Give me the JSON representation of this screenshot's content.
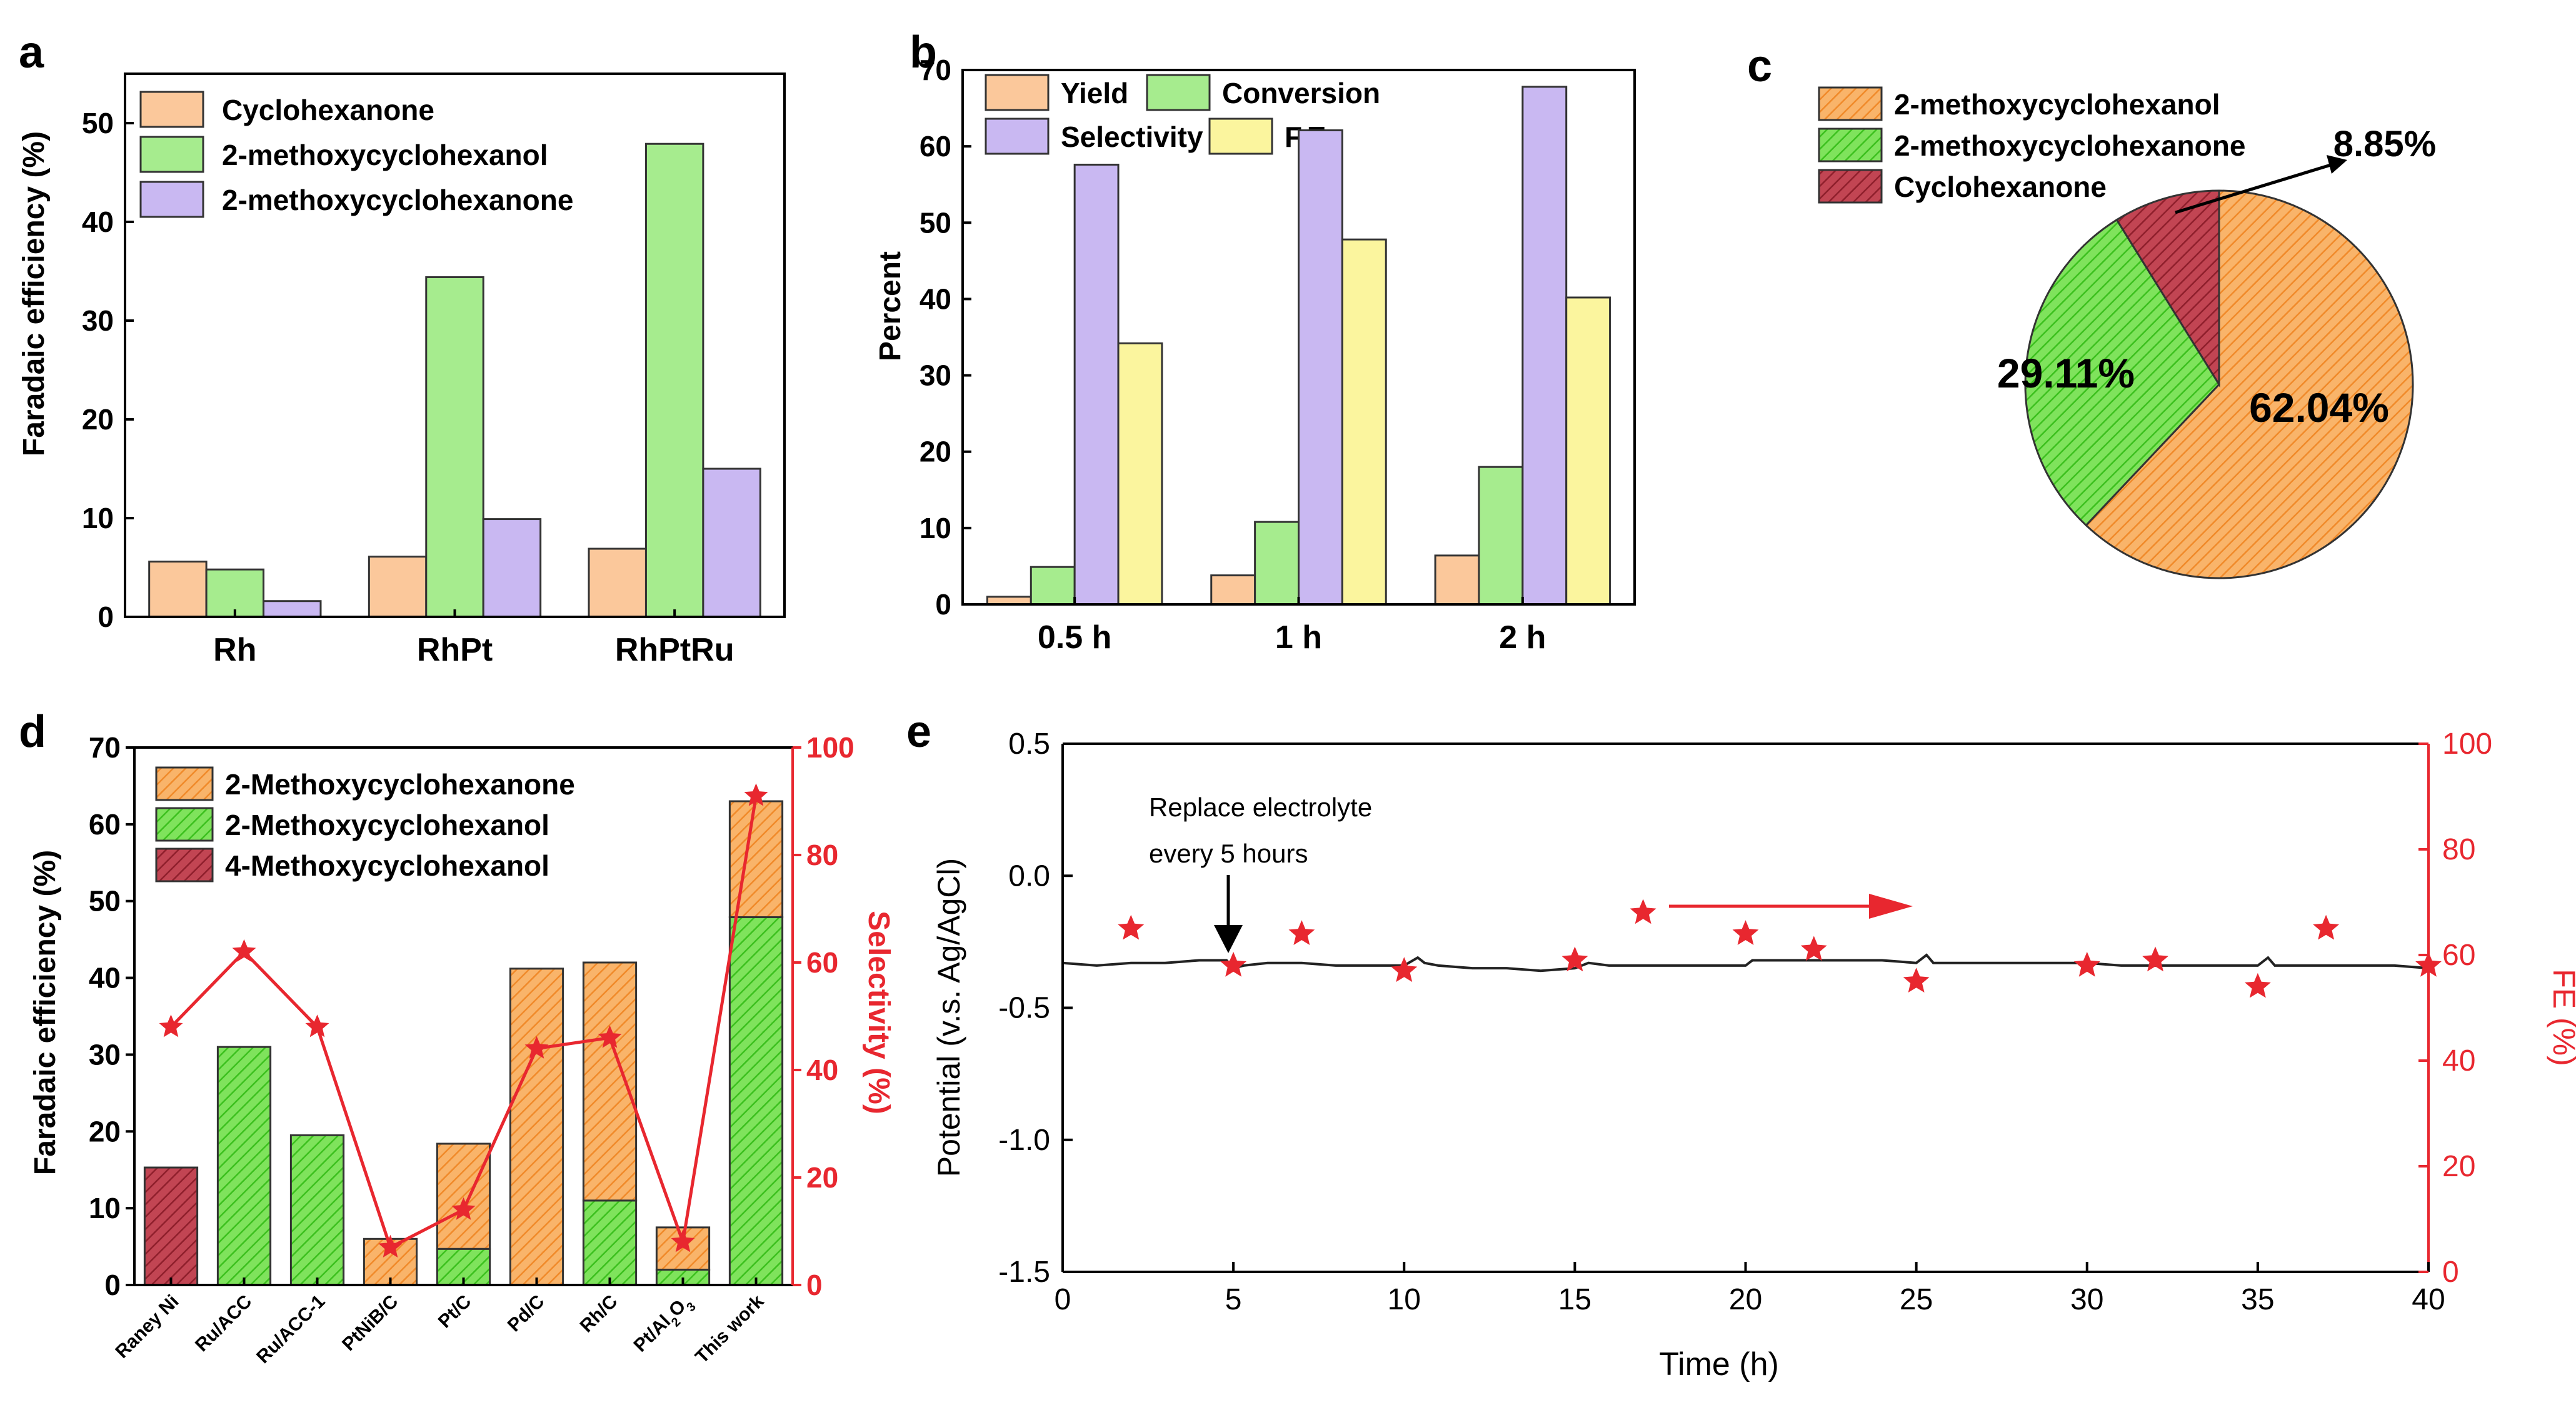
{
  "colors": {
    "orange": "#fbc89b",
    "green": "#a6ec8e",
    "purple": "#c9b8f2",
    "yellow": "#fbf59e",
    "orange_hatch": "#f7a54f",
    "green_hatch": "#55d83a",
    "red_hatch": "#b3303e",
    "red": "#e8272f",
    "trace": "#222222"
  },
  "chart_data": [
    {
      "panel": "a",
      "type": "bar",
      "ylabel": "Faradaic efficiency (%)",
      "ylim": [
        0,
        55
      ],
      "yticks": [
        "0",
        "10",
        "20",
        "30",
        "40",
        "50"
      ],
      "categories": [
        "Rh",
        "RhPt",
        "RhPtRu"
      ],
      "legend_position": "top-left",
      "series": [
        {
          "name": "Cyclohexanone",
          "values": [
            5.6,
            6.1,
            6.9
          ]
        },
        {
          "name": "2-methoxycyclohexanol",
          "values": [
            4.8,
            34.4,
            47.9
          ]
        },
        {
          "name": "2-methoxycyclohexanone",
          "values": [
            1.6,
            9.9,
            15.0
          ]
        }
      ]
    },
    {
      "panel": "b",
      "type": "bar",
      "ylabel": "Percent",
      "ylim": [
        0,
        70
      ],
      "yticks": [
        "0",
        "10",
        "20",
        "30",
        "40",
        "50",
        "60",
        "70"
      ],
      "categories": [
        "0.5 h",
        "1 h",
        "2 h"
      ],
      "legend_position": "top",
      "series": [
        {
          "name": "Yield",
          "values": [
            1.0,
            3.8,
            6.4
          ]
        },
        {
          "name": "Conversion",
          "values": [
            4.9,
            10.8,
            18.0
          ]
        },
        {
          "name": "Selectivity",
          "values": [
            57.6,
            62.1,
            67.8
          ]
        },
        {
          "name": "F.E.",
          "values": [
            34.2,
            47.8,
            40.2
          ]
        }
      ]
    },
    {
      "panel": "c",
      "type": "pie",
      "legend_position": "top-left",
      "labels": [
        "2-methoxycyclohexanol",
        "2-methoxycyclohexanone",
        "Cyclohexanone"
      ],
      "values": [
        62.04,
        29.11,
        8.85
      ],
      "data_labels": [
        "62.04%",
        "29.11%",
        "8.85%"
      ]
    },
    {
      "panel": "d",
      "type": "bar",
      "stacked": true,
      "ylabel": "Faradaic efficiency (%)",
      "ylim": [
        0,
        70
      ],
      "yticks": [
        "0",
        "10",
        "20",
        "30",
        "40",
        "50",
        "60",
        "70"
      ],
      "y2label": "Selectivity (%)",
      "y2lim": [
        0,
        100
      ],
      "y2ticks": [
        "0",
        "20",
        "40",
        "60",
        "80",
        "100"
      ],
      "categories": [
        "Raney Ni",
        "Ru/ACC",
        "Ru/ACC-1",
        "PtNiB/C",
        "Pt/C",
        "Pd/C",
        "Rh/C",
        "Pt/Al2O3",
        "This work"
      ],
      "legend_position": "top-left",
      "series": [
        {
          "name": "4-Methoxycyclohexanol",
          "values": [
            15.3,
            0,
            0,
            0,
            0,
            0,
            0,
            0,
            0
          ]
        },
        {
          "name": "2-Methoxycyclohexanol",
          "values": [
            0,
            31.0,
            19.5,
            0,
            4.7,
            0,
            11.0,
            2.0,
            47.9
          ]
        },
        {
          "name": "2-Methoxycyclohexanone",
          "values": [
            0,
            0,
            0,
            6.0,
            13.7,
            41.2,
            31.0,
            5.5,
            15.1
          ]
        }
      ],
      "selectivity": {
        "values": [
          48,
          62,
          48,
          7,
          14,
          44,
          46,
          8,
          91
        ]
      }
    },
    {
      "panel": "e",
      "type": "line",
      "xlabel": "Time (h)",
      "xlim": [
        0,
        40
      ],
      "xticks": [
        "0",
        "5",
        "10",
        "15",
        "20",
        "25",
        "30",
        "35",
        "40"
      ],
      "ylabel": "Potential (v.s. Ag/AgCl)",
      "ylim": [
        -1.5,
        0.5
      ],
      "yticks": [
        "-1.5",
        "-1.0",
        "-0.5",
        "0.0",
        "0.5"
      ],
      "y2label": "FE (%)",
      "y2lim": [
        0,
        100
      ],
      "y2ticks": [
        "0",
        "20",
        "40",
        "60",
        "80",
        "100"
      ],
      "annotation_line1": "Replace electrolyte",
      "annotation_line2": "every 5 hours",
      "annotation_x": 5,
      "potential": {
        "x": [
          0,
          1,
          2,
          3,
          4,
          4.8,
          5,
          5.3,
          6,
          7,
          8,
          9,
          10,
          10.4,
          10.6,
          11,
          12,
          13,
          14,
          15,
          15.4,
          16,
          17,
          18,
          19,
          20,
          20.2,
          21,
          22,
          23,
          24,
          25,
          25.3,
          25.5,
          26,
          27,
          28,
          29,
          30,
          31,
          32,
          33,
          34,
          35,
          35.3,
          35.5,
          36,
          37,
          38,
          39,
          40
        ],
        "y": [
          -0.33,
          -0.34,
          -0.33,
          -0.33,
          -0.32,
          -0.32,
          -0.35,
          -0.34,
          -0.33,
          -0.33,
          -0.34,
          -0.34,
          -0.34,
          -0.31,
          -0.33,
          -0.34,
          -0.35,
          -0.35,
          -0.36,
          -0.35,
          -0.33,
          -0.34,
          -0.34,
          -0.34,
          -0.34,
          -0.34,
          -0.32,
          -0.32,
          -0.32,
          -0.32,
          -0.32,
          -0.33,
          -0.3,
          -0.33,
          -0.33,
          -0.33,
          -0.33,
          -0.33,
          -0.33,
          -0.34,
          -0.34,
          -0.34,
          -0.34,
          -0.34,
          -0.31,
          -0.34,
          -0.34,
          -0.34,
          -0.34,
          -0.34,
          -0.35
        ]
      },
      "fe": {
        "x": [
          2,
          5,
          7,
          10,
          15,
          17,
          20,
          22,
          25,
          30,
          32,
          35,
          37,
          40
        ],
        "y": [
          65,
          58,
          64,
          57,
          59,
          68,
          64,
          61,
          55,
          58,
          59,
          54,
          65,
          58
        ]
      }
    }
  ]
}
